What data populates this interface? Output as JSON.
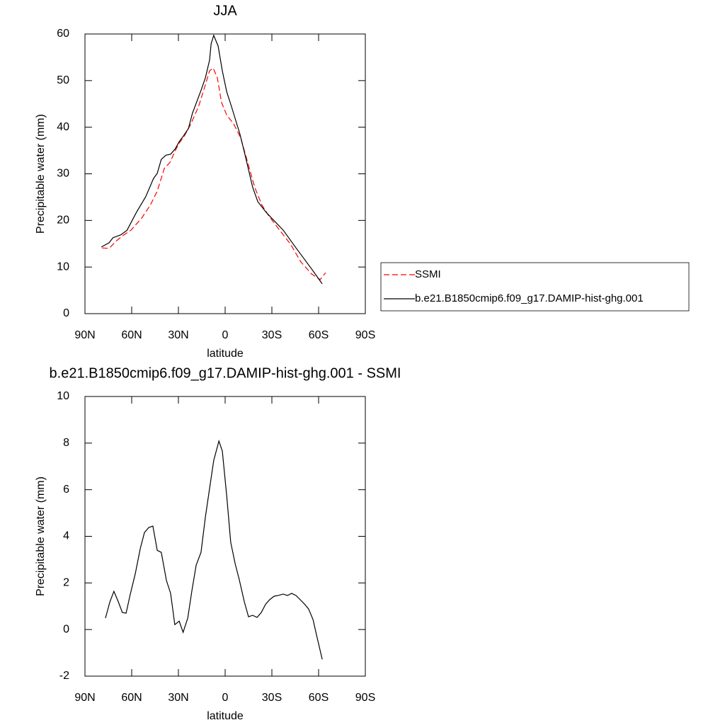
{
  "chart_data": [
    {
      "type": "line",
      "title": "JJA",
      "x_label": "latitude",
      "y_label": "Precipitable water (mm)",
      "xlim": [
        90,
        -90
      ],
      "xticks": [
        {
          "value": 90,
          "label": "90N"
        },
        {
          "value": 60,
          "label": "60N"
        },
        {
          "value": 30,
          "label": "30N"
        },
        0,
        {
          "value": -30,
          "label": "30S"
        },
        {
          "value": -60,
          "label": "60S"
        },
        {
          "value": -90,
          "label": "90S"
        }
      ],
      "ylim": [
        0,
        60
      ],
      "yticks": [
        0,
        10,
        20,
        30,
        40,
        50,
        60
      ],
      "legend": "right",
      "series": [
        {
          "name": "SSMI",
          "color": "#ff0000",
          "dashed": true,
          "x": [
            79,
            74.5,
            69.5,
            65,
            60.5,
            53.6,
            48,
            43.6,
            39,
            35.5,
            32,
            29.5,
            26.4,
            22,
            17,
            12.7,
            10,
            7.7,
            5,
            2.3,
            -1,
            -5.5,
            -10,
            -14.5,
            -19,
            -23.6,
            -28,
            -35,
            -42,
            -48.6,
            -55.5,
            -61,
            -64.5
          ],
          "values": [
            14.1,
            14.0,
            15.7,
            16.9,
            17.9,
            20.5,
            23.3,
            26.3,
            31.2,
            32.4,
            35.0,
            36.6,
            38.0,
            40.7,
            44.5,
            49.1,
            52.1,
            52.7,
            50.6,
            45.3,
            42.6,
            40.7,
            37.7,
            32.4,
            27.1,
            23.3,
            21.0,
            17.9,
            14.9,
            11.1,
            8.5,
            7.3,
            8.8
          ]
        },
        {
          "name": "b.e21.B1850cmip6.f09_g17.DAMIP-hist-ghg.001",
          "color": "#000000",
          "dashed": false,
          "x": [
            79.5,
            74.5,
            72,
            67,
            63,
            57,
            51,
            46,
            43.6,
            41,
            38,
            35,
            32,
            29.5,
            27,
            23.6,
            21,
            15.5,
            12.7,
            10,
            9,
            7.3,
            4.5,
            1.8,
            -1,
            -4,
            -9.5,
            -12.3,
            -15,
            -17.7,
            -21,
            -26.4,
            -37.3,
            -45.5,
            -55.5,
            -62.3
          ],
          "values": [
            14.3,
            15.2,
            16.3,
            16.9,
            17.9,
            21.7,
            25.1,
            29.0,
            30.1,
            33.1,
            34.0,
            34.2,
            35.4,
            36.9,
            38.0,
            39.7,
            43.0,
            47.9,
            50.6,
            54.4,
            57.9,
            59.7,
            57.4,
            52.1,
            47.6,
            44.5,
            38.5,
            34.7,
            30.9,
            27.1,
            24.0,
            21.7,
            17.9,
            14.1,
            9.6,
            6.4
          ]
        }
      ]
    },
    {
      "type": "line",
      "title": "b.e21.B1850cmip6.f09_g17.DAMIP-hist-ghg.001 - SSMI",
      "x_label": "latitude",
      "y_label": "Precipitable water (mm)",
      "xlim": [
        90,
        -90
      ],
      "xticks": [
        {
          "value": 90,
          "label": "90N"
        },
        {
          "value": 60,
          "label": "60N"
        },
        {
          "value": 30,
          "label": "30N"
        },
        0,
        {
          "value": -30,
          "label": "30S"
        },
        {
          "value": -60,
          "label": "60S"
        },
        {
          "value": -90,
          "label": "90S"
        }
      ],
      "ylim": [
        -2,
        10
      ],
      "yticks": [
        -2,
        0,
        2,
        4,
        6,
        8,
        10
      ],
      "series": [
        {
          "color": "#000000",
          "dashed": false,
          "x": [
            76.8,
            74,
            71.4,
            68.6,
            66,
            63.6,
            61,
            57.7,
            54.5,
            51.8,
            49,
            46.4,
            43.6,
            41,
            37.7,
            35,
            32.3,
            29.5,
            27,
            24,
            21.4,
            18.6,
            15.5,
            12.7,
            10,
            7.3,
            4,
            1.8,
            -1,
            -3.6,
            -6.4,
            -9,
            -12.3,
            -15,
            -17.7,
            -20.5,
            -23.2,
            -26,
            -28.6,
            -31.4,
            -34,
            -37.3,
            -40,
            -42.7,
            -45.5,
            -48.2,
            -51,
            -53.6,
            -56.4,
            -59,
            -62.3
          ],
          "values": [
            0.49,
            1.19,
            1.64,
            1.19,
            0.73,
            0.7,
            1.49,
            2.4,
            3.47,
            4.16,
            4.38,
            4.44,
            3.4,
            3.31,
            2.1,
            1.55,
            0.21,
            0.36,
            -0.12,
            0.49,
            1.64,
            2.77,
            3.31,
            4.83,
            6.05,
            7.26,
            8.09,
            7.66,
            5.74,
            3.74,
            2.83,
            2.16,
            1.19,
            0.55,
            0.61,
            0.52,
            0.73,
            1.09,
            1.28,
            1.43,
            1.46,
            1.52,
            1.46,
            1.55,
            1.46,
            1.28,
            1.09,
            0.88,
            0.43,
            -0.33,
            -1.28
          ]
        }
      ]
    }
  ]
}
